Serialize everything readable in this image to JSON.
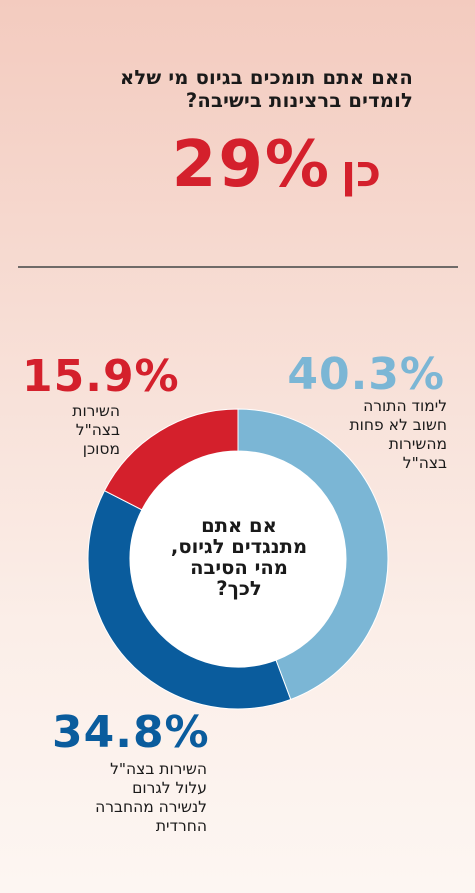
{
  "question": {
    "line1": "האם אתם תומכים בגיוס מי שלא",
    "line2": "לומדים ברצינות בישיבה?"
  },
  "yes": {
    "value": "29%",
    "label": "כן"
  },
  "center": {
    "line1": "אם אתם",
    "line2": "מתנגדים לגיוס,",
    "line3": "מהי הסיבה",
    "line4": "לכך?"
  },
  "segments": [
    {
      "label": "40.3%",
      "desc": [
        "לימוד התורה",
        "חשוב לא פחות",
        "מהשירות",
        "בצה\"ל"
      ],
      "color": "#7bb6d5"
    },
    {
      "label": "34.8%",
      "desc": [
        "השירות בצה\"ל",
        "עלול לגרום",
        "לנשירה מהחברה",
        "החרדית"
      ],
      "color": "#0a5c9d"
    },
    {
      "label": "15.9%",
      "desc": [
        "השירות",
        "בצה\"ל",
        "מסוכן"
      ],
      "color": "#d4202c"
    }
  ],
  "chart_data": {
    "type": "pie",
    "categories": [
      "לימוד התורה חשוב לא פחות מהשירות בצה\"ל",
      "השירות בצה\"ל עלול לגרום לנשירה מהחברה החרדית",
      "השירות בצה\"ל מסוכן"
    ],
    "values": [
      40.3,
      34.8,
      15.9
    ],
    "unit": "%"
  }
}
